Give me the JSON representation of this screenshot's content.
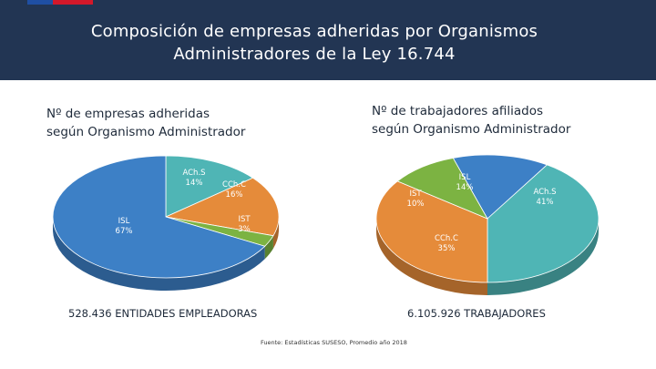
{
  "header": {
    "title_line1": "Composición de empresas adheridas por Organismos",
    "title_line2": "Administradores de la Ley 16.744"
  },
  "left_chart": {
    "subtitle_line1": "Nº de empresas adheridas",
    "subtitle_line2": "según Organismo Administrador",
    "total_label": "528.436 ENTIDADES EMPLEADORAS"
  },
  "right_chart": {
    "subtitle_line1": "Nº de trabajadores afiliados",
    "subtitle_line2": "según Organismo Administrador",
    "total_label": "6.105.926 TRABAJADORES"
  },
  "source": "Fuente: Estadísticas SUSESO, Promedio año 2018",
  "colors": {
    "header_bg": "#223553",
    "ISL": "#3d80c6",
    "ACHS": "#4fb5b5",
    "CCHC": "#e58b3a",
    "IST": "#7cb342"
  },
  "chart_data": [
    {
      "type": "pie",
      "title": "Nº de empresas adheridas según Organismo Administrador",
      "slices": [
        {
          "label": "ACh.S",
          "value": 14,
          "display": "14%",
          "color": "#4fb5b5"
        },
        {
          "label": "CCh.C",
          "value": 16,
          "display": "16%",
          "color": "#e58b3a"
        },
        {
          "label": "IST",
          "value": 3,
          "display": "3%",
          "color": "#7cb342"
        },
        {
          "label": "ISL",
          "value": 67,
          "display": "67%",
          "color": "#3d80c6"
        }
      ]
    },
    {
      "type": "pie",
      "title": "Nº de trabajadores afiliados según Organismo Administrador",
      "slices": [
        {
          "label": "ISL",
          "value": 14,
          "display": "14%",
          "color": "#3d80c6"
        },
        {
          "label": "ACh.S",
          "value": 41,
          "display": "41%",
          "color": "#4fb5b5"
        },
        {
          "label": "CCh.C",
          "value": 35,
          "display": "35%",
          "color": "#e58b3a"
        },
        {
          "label": "IST",
          "value": 10,
          "display": "10%",
          "color": "#7cb342"
        }
      ]
    }
  ]
}
